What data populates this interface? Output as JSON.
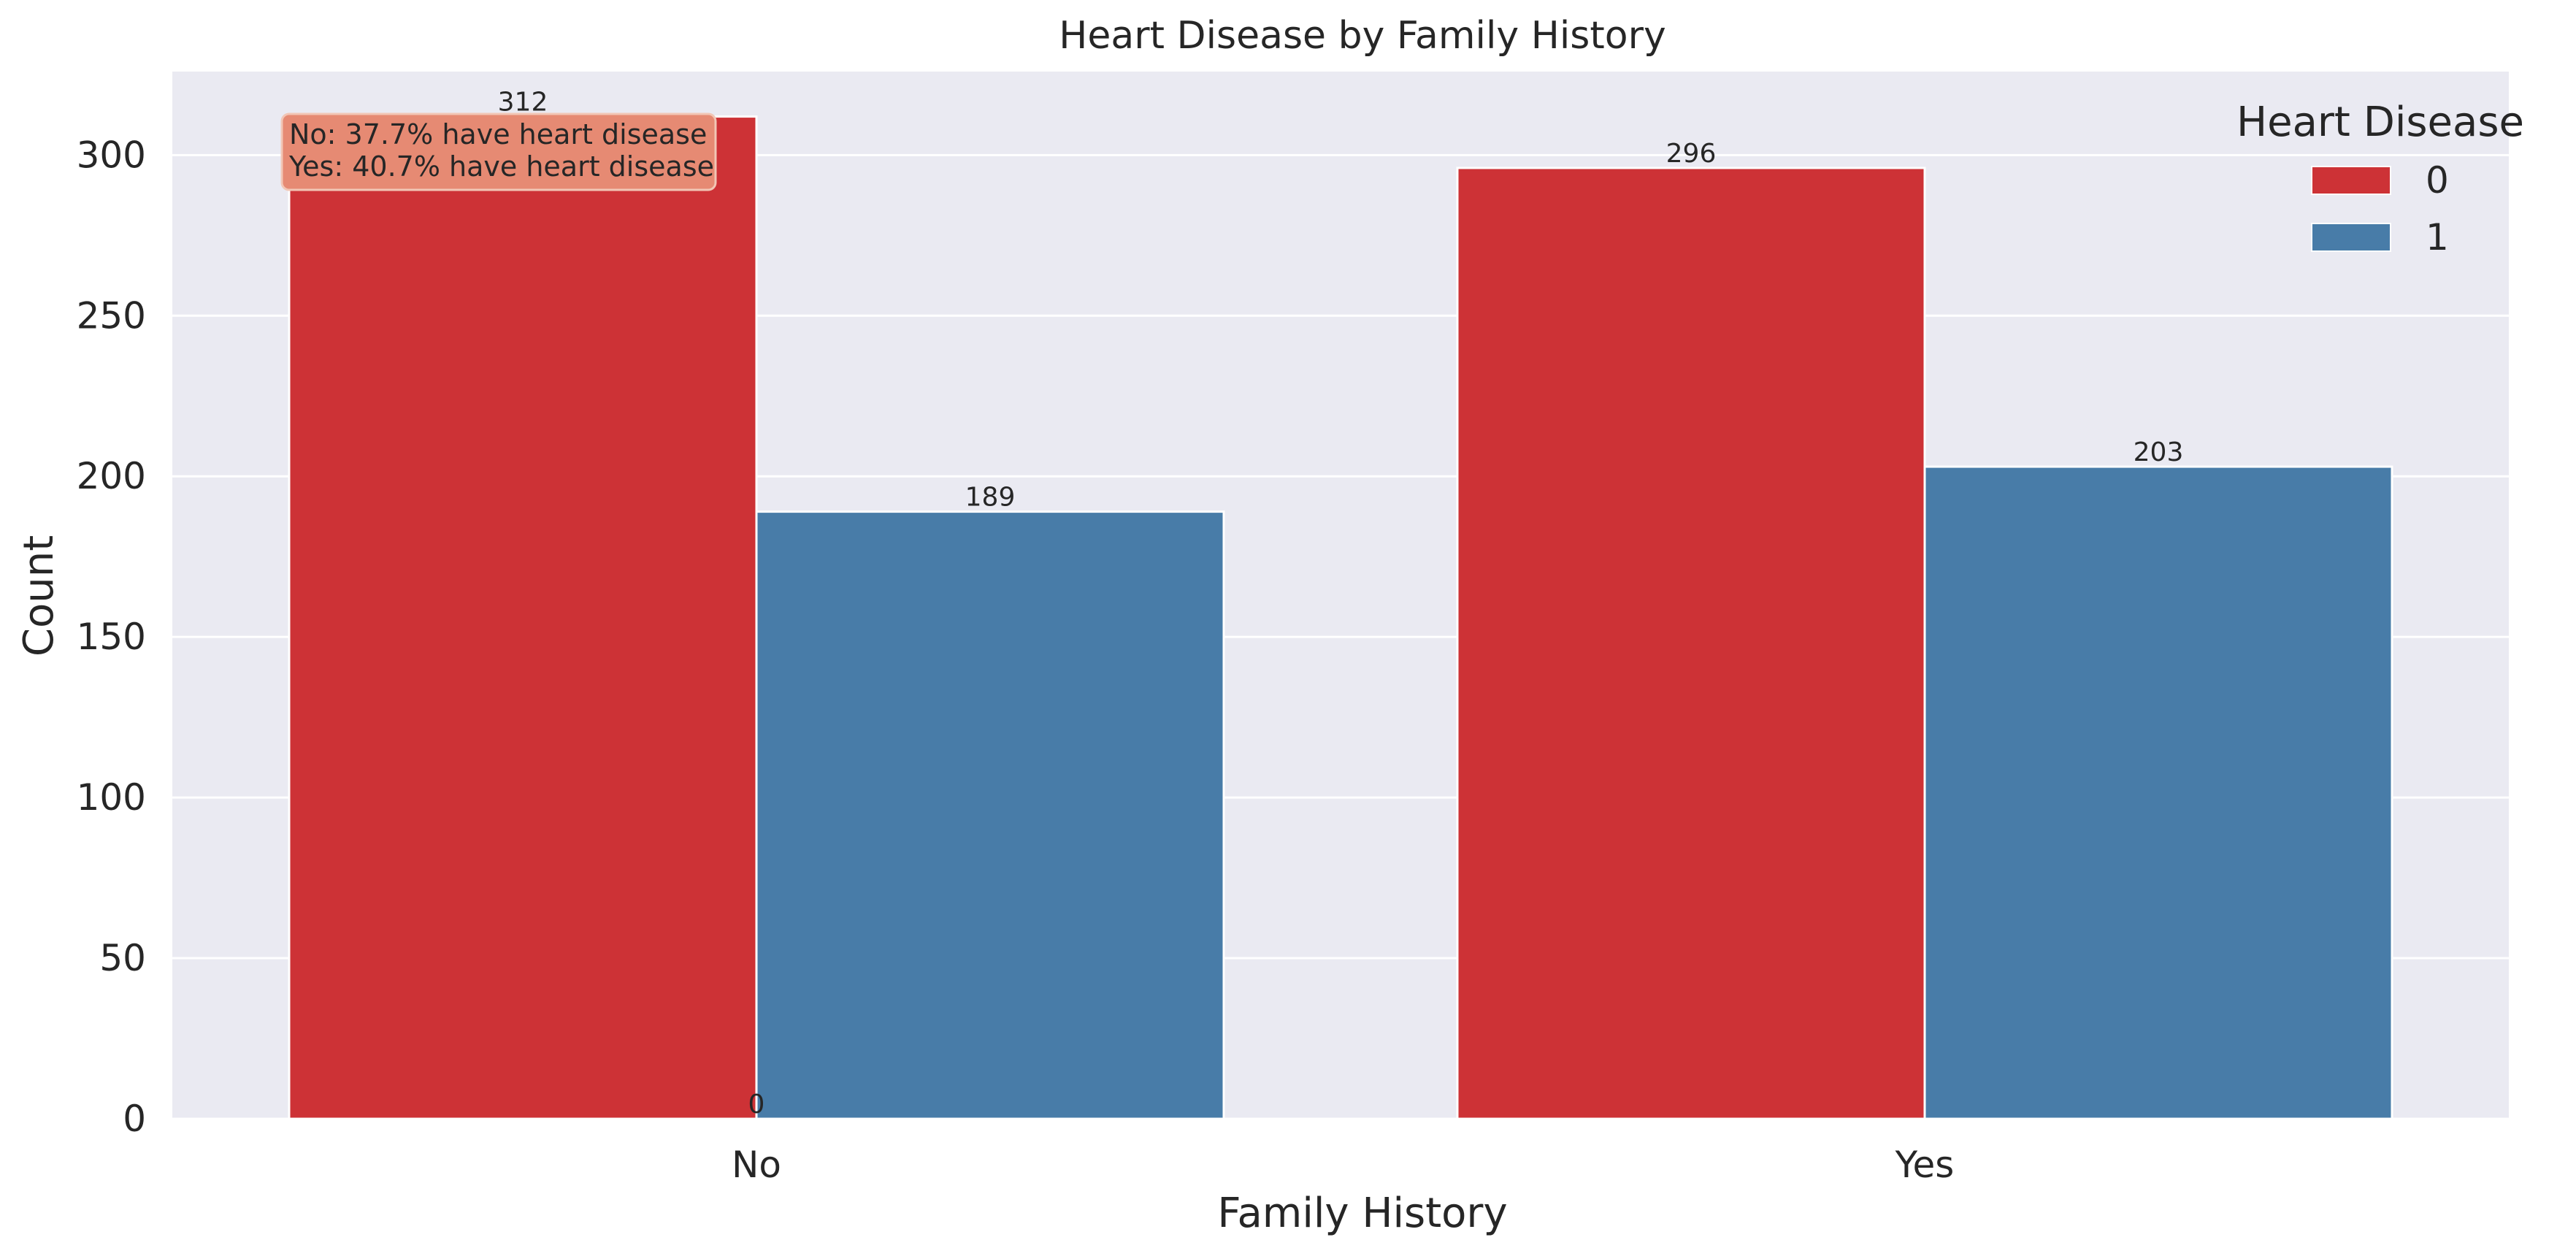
{
  "colors": {
    "plot_background": "#eaeaf2",
    "grid": "#ffffff",
    "series_0": "#cd3236",
    "series_1": "#487ca8",
    "annotation_box": "#e68a73",
    "text": "#262626"
  },
  "chart_data": {
    "type": "bar",
    "title": "Heart Disease by Family History",
    "xlabel": "Family History",
    "ylabel": "Count",
    "categories": [
      "No",
      "Yes"
    ],
    "ylim": [
      0,
      326
    ],
    "yticks": [
      0,
      50,
      100,
      150,
      200,
      250,
      300
    ],
    "grid": true,
    "legend": {
      "title": "Heart Disease",
      "placement": "top-right"
    },
    "series": [
      {
        "name": "0",
        "values": [
          312,
          296
        ],
        "color": "#cd3236"
      },
      {
        "name": "1",
        "values": [
          189,
          203
        ],
        "color": "#487ca8"
      }
    ],
    "bar_labels": {
      "series_0": [
        "312",
        "296"
      ],
      "series_1": [
        "189",
        "203"
      ],
      "extra": "0"
    },
    "annotation": {
      "placement": "top-left",
      "lines": [
        "No: 37.7% have heart disease",
        "Yes: 40.7% have heart disease"
      ]
    }
  }
}
